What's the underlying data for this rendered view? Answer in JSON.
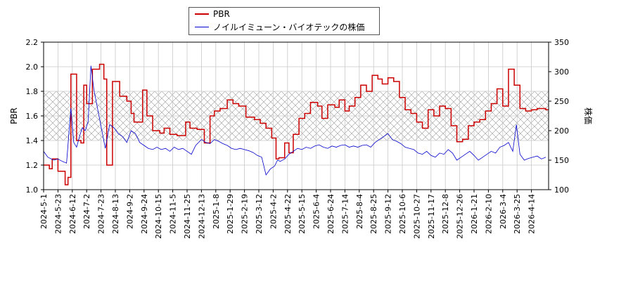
{
  "legend": {
    "series1": "PBR",
    "series2": "ノイルイミューン・バイオテックの株価"
  },
  "chart_data": {
    "type": "line",
    "ylabel_left": "PBR",
    "ylabel_right": "株価",
    "ylim_left": [
      1.0,
      2.2
    ],
    "ylim_right": [
      100,
      350
    ],
    "yticks_left": [
      "1.0",
      "1.2",
      "1.4",
      "1.6",
      "1.8",
      "2.0",
      "2.2"
    ],
    "yticks_right": [
      "100",
      "150",
      "200",
      "250",
      "300",
      "350"
    ],
    "band_left": [
      1.4,
      1.8
    ],
    "grid": true,
    "legend_position": "top-center",
    "x_tick_labels": [
      "2024-5-1",
      "2024-5-23",
      "2024-6-12",
      "2024-7-2",
      "2024-7-23",
      "2024-8-13",
      "2024-9-2",
      "2024-9-24",
      "2024-10-15",
      "2024-11-5",
      "2024-11-25",
      "2024-12-13",
      "2025-1-8",
      "2025-1-29",
      "2025-2-19",
      "2025-3-12",
      "2025-4-2",
      "2025-4-22",
      "2025-5-15",
      "2025-6-4",
      "2025-6-24",
      "2025-7-14",
      "2025-8-4",
      "2025-8-25",
      "2025-9-12",
      "2025-10-6",
      "2025-10-27",
      "2025-11-17",
      "2025-12-8",
      "2025-12-26",
      "2026-1-21",
      "2026-2-10",
      "2026-3-4",
      "2026-3-25",
      "2026-4-14"
    ],
    "series": [
      {
        "name": "PBR",
        "color": "#cc0000",
        "axis": "left",
        "x": [
          0,
          0.4,
          0.6,
          1,
          1.5,
          1.7,
          1.9,
          2.3,
          2.6,
          2.8,
          3,
          3.4,
          3.9,
          4.2,
          4.4,
          4.8,
          5.3,
          5.8,
          6.1,
          6.3,
          6.9,
          7.2,
          7.6,
          8.1,
          8.4,
          8.8,
          9.3,
          9.9,
          10.2,
          10.7,
          11.2,
          11.6,
          11.9,
          12.3,
          12.8,
          13.2,
          13.6,
          14.1,
          14.7,
          15.1,
          15.5,
          15.9,
          16.2,
          16.4,
          16.8,
          17.1,
          17.4,
          17.8,
          18.2,
          18.6,
          19.1,
          19.4,
          19.8,
          20.3,
          20.6,
          21,
          21.3,
          21.7,
          22.1,
          22.5,
          22.9,
          23.3,
          23.6,
          24,
          24.4,
          24.8,
          25.2,
          25.6,
          26,
          26.4,
          26.8,
          27.2,
          27.6,
          28,
          28.4,
          28.8,
          29.2,
          29.6,
          30,
          30.4,
          30.8,
          31.2,
          31.6,
          32,
          32.4,
          32.8,
          33.2,
          33.6,
          34,
          34.4,
          35
        ],
        "y": [
          1.2,
          1.17,
          1.25,
          1.15,
          1.04,
          1.1,
          1.94,
          1.4,
          1.38,
          1.85,
          1.7,
          1.98,
          2.02,
          1.9,
          1.2,
          1.88,
          1.76,
          1.72,
          1.62,
          1.55,
          1.81,
          1.6,
          1.48,
          1.46,
          1.5,
          1.45,
          1.44,
          1.55,
          1.5,
          1.49,
          1.38,
          1.6,
          1.64,
          1.66,
          1.73,
          1.7,
          1.68,
          1.59,
          1.57,
          1.54,
          1.5,
          1.42,
          1.25,
          1.26,
          1.38,
          1.3,
          1.45,
          1.58,
          1.62,
          1.71,
          1.68,
          1.58,
          1.69,
          1.67,
          1.73,
          1.64,
          1.68,
          1.75,
          1.85,
          1.8,
          1.93,
          1.9,
          1.86,
          1.91,
          1.88,
          1.75,
          1.65,
          1.62,
          1.55,
          1.5,
          1.65,
          1.6,
          1.68,
          1.66,
          1.52,
          1.39,
          1.41,
          1.52,
          1.55,
          1.57,
          1.64,
          1.7,
          1.82,
          1.68,
          1.98,
          1.85,
          1.66,
          1.64,
          1.65,
          1.66,
          1.65
        ]
      },
      {
        "name": "ノイルイミューン・バイオテックの株価",
        "color": "#0000cc",
        "axis": "right",
        "x": [
          0,
          0.3,
          0.7,
          1,
          1.3,
          1.6,
          1.9,
          2.1,
          2.3,
          2.5,
          2.7,
          2.9,
          3.1,
          3.3,
          3.5,
          3.7,
          3.9,
          4.1,
          4.3,
          4.6,
          4.9,
          5.2,
          5.5,
          5.8,
          6.1,
          6.4,
          6.7,
          7,
          7.3,
          7.6,
          7.9,
          8.2,
          8.5,
          8.8,
          9.1,
          9.4,
          9.7,
          10,
          10.3,
          10.6,
          11,
          11.3,
          11.6,
          11.9,
          12.2,
          12.5,
          12.8,
          13.1,
          13.4,
          13.7,
          14,
          14.3,
          14.6,
          14.9,
          15.2,
          15.5,
          15.8,
          16.1,
          16.3,
          16.5,
          16.8,
          17.1,
          17.4,
          17.7,
          18,
          18.3,
          18.6,
          18.9,
          19.2,
          19.5,
          19.8,
          20.1,
          20.4,
          20.7,
          21,
          21.3,
          21.6,
          21.9,
          22.2,
          22.5,
          22.8,
          23.1,
          23.4,
          23.7,
          24,
          24.3,
          24.6,
          24.9,
          25.2,
          25.5,
          25.8,
          26.1,
          26.4,
          26.7,
          27,
          27.3,
          27.6,
          27.9,
          28.2,
          28.5,
          28.8,
          29.1,
          29.4,
          29.7,
          30,
          30.3,
          30.6,
          30.9,
          31.2,
          31.5,
          31.8,
          32.1,
          32.4,
          32.7,
          32.95,
          33.2,
          33.5,
          33.8,
          34.1,
          34.4,
          34.7,
          35
        ],
        "y": [
          165,
          155,
          150,
          152,
          148,
          145,
          238,
          180,
          172,
          190,
          205,
          200,
          215,
          310,
          270,
          245,
          220,
          195,
          170,
          210,
          205,
          195,
          190,
          180,
          200,
          195,
          180,
          175,
          170,
          168,
          172,
          168,
          170,
          165,
          172,
          168,
          170,
          165,
          160,
          175,
          185,
          180,
          178,
          185,
          182,
          178,
          175,
          170,
          168,
          170,
          168,
          166,
          163,
          158,
          155,
          125,
          135,
          140,
          150,
          148,
          152,
          160,
          165,
          170,
          168,
          172,
          170,
          174,
          176,
          172,
          170,
          174,
          172,
          175,
          176,
          172,
          174,
          172,
          175,
          176,
          172,
          180,
          185,
          190,
          195,
          185,
          182,
          178,
          172,
          170,
          168,
          162,
          160,
          165,
          158,
          155,
          162,
          160,
          168,
          162,
          150,
          155,
          160,
          165,
          158,
          150,
          155,
          160,
          165,
          162,
          172,
          175,
          180,
          165,
          210,
          160,
          150,
          153,
          155,
          157,
          152,
          155
        ]
      }
    ]
  }
}
